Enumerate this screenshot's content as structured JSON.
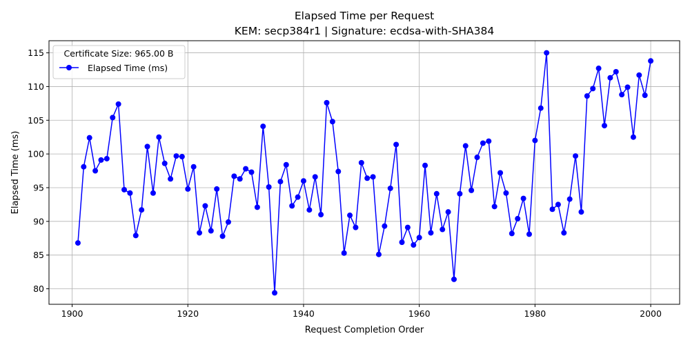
{
  "chart_data": {
    "type": "line",
    "title": "Elapsed Time per Request",
    "subtitle": "KEM: secp384r1 | Signature: ecdsa-with-SHA384",
    "xlabel": "Request Completion Order",
    "ylabel": "Elapsed Time (ms)",
    "xlim": [
      1896,
      2005
    ],
    "ylim": [
      77.7,
      116.8
    ],
    "xticks": [
      1900,
      1920,
      1940,
      1960,
      1980,
      2000
    ],
    "yticks": [
      80,
      85,
      90,
      95,
      100,
      105,
      110,
      115
    ],
    "grid": true,
    "legend": {
      "placement": "top-left",
      "title": "Certificate Size: 965.00 B",
      "entries": [
        "Elapsed Time (ms)"
      ]
    },
    "color": "#0000ff",
    "x_start": 1901,
    "series": [
      {
        "name": "Elapsed Time (ms)",
        "values": [
          86.8,
          98.1,
          102.4,
          97.5,
          99.1,
          99.3,
          105.4,
          107.4,
          94.7,
          94.2,
          87.9,
          91.7,
          101.1,
          94.2,
          102.5,
          98.6,
          96.3,
          99.7,
          99.6,
          94.8,
          98.1,
          88.3,
          92.3,
          88.6,
          94.8,
          87.8,
          89.9,
          96.7,
          96.3,
          97.8,
          97.3,
          92.1,
          104.1,
          95.1,
          79.4,
          95.9,
          98.4,
          92.3,
          93.6,
          96.0,
          91.7,
          96.6,
          91.0,
          107.6,
          104.8,
          97.4,
          85.3,
          90.9,
          89.1,
          98.7,
          96.4,
          96.6,
          85.1,
          89.3,
          94.9,
          101.4,
          86.9,
          89.1,
          86.5,
          87.6,
          98.3,
          88.3,
          94.1,
          88.8,
          91.4,
          81.4,
          94.1,
          101.2,
          94.6,
          99.5,
          101.6,
          101.9,
          92.2,
          97.2,
          94.2,
          88.2,
          90.4,
          93.4,
          88.1,
          102.0,
          106.8,
          115.0,
          91.8,
          92.5,
          88.3,
          93.3,
          99.7,
          91.4,
          108.6,
          109.7,
          112.7,
          104.2,
          111.3,
          112.2,
          108.8,
          109.9,
          102.5,
          111.7,
          108.7,
          113.8
        ]
      }
    ]
  }
}
